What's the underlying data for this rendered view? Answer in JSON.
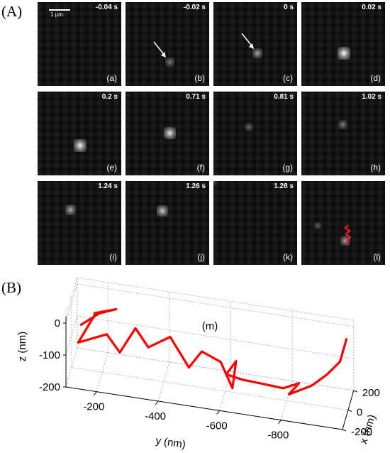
{
  "figure": {
    "panel_a_label": "(A)",
    "panel_b_label": "(B)",
    "scale_bar_label": "1 µm",
    "frames": [
      {
        "time": "-0.04 s",
        "label": "(a)",
        "spot_intensity": 0.0
      },
      {
        "time": "-0.02 s",
        "label": "(b)",
        "spot_intensity": 0.35,
        "arrow": true
      },
      {
        "time": "0 s",
        "label": "(c)",
        "spot_intensity": 0.55,
        "arrow": true
      },
      {
        "time": "0.02 s",
        "label": "(d)",
        "spot_intensity": 1.0
      },
      {
        "time": "0.2 s",
        "label": "(e)",
        "spot_intensity": 0.95
      },
      {
        "time": "0.71 s",
        "label": "(f)",
        "spot_intensity": 0.9
      },
      {
        "time": "0.81 s",
        "label": "(g)",
        "spot_intensity": 0.25
      },
      {
        "time": "1.02 s",
        "label": "(h)",
        "spot_intensity": 0.35
      },
      {
        "time": "1.24 s",
        "label": "(i)",
        "spot_intensity": 0.6
      },
      {
        "time": "1.26 s",
        "label": "(j)",
        "spot_intensity": 0.75
      },
      {
        "time": "1.28 s",
        "label": "(k)",
        "spot_intensity": 0.1
      },
      {
        "time": "",
        "label": "(l)",
        "spot_intensity": 0.55,
        "trajectory_overlay": true
      }
    ]
  },
  "chart_data": {
    "type": "line3d",
    "annotation": "(m)",
    "xlabel": "x (nm)",
    "ylabel": "y (nm)",
    "zlabel": "z (nm)",
    "x_ticks": [
      -200,
      0,
      200
    ],
    "y_ticks": [
      -200,
      -400,
      -600,
      -800
    ],
    "z_ticks": [
      0,
      -100,
      -200
    ],
    "xlim": [
      -200,
      200
    ],
    "ylim": [
      -100,
      -1000
    ],
    "zlim": [
      -200,
      20
    ],
    "grid": true,
    "series": [
      {
        "color": "#ff0000",
        "points": [
          {
            "x": -100,
            "y": -140,
            "z": -30
          },
          {
            "x": -80,
            "y": -200,
            "z": 10
          },
          {
            "x": -60,
            "y": -180,
            "z": 0
          },
          {
            "x": -50,
            "y": -250,
            "z": 20
          },
          {
            "x": -40,
            "y": -180,
            "z": -10
          },
          {
            "x": -90,
            "y": -130,
            "z": -90
          },
          {
            "x": -60,
            "y": -220,
            "z": -60
          },
          {
            "x": -30,
            "y": -260,
            "z": -120
          },
          {
            "x": -20,
            "y": -310,
            "z": -40
          },
          {
            "x": 0,
            "y": -350,
            "z": -100
          },
          {
            "x": 10,
            "y": -420,
            "z": -60
          },
          {
            "x": 20,
            "y": -480,
            "z": -150
          },
          {
            "x": 40,
            "y": -520,
            "z": -100
          },
          {
            "x": 60,
            "y": -580,
            "z": -130
          },
          {
            "x": 60,
            "y": -600,
            "z": -170
          },
          {
            "x": 40,
            "y": -620,
            "z": -200
          },
          {
            "x": 60,
            "y": -630,
            "z": -120
          },
          {
            "x": 40,
            "y": -600,
            "z": -160
          },
          {
            "x": 60,
            "y": -650,
            "z": -175
          },
          {
            "x": 80,
            "y": -720,
            "z": -185
          },
          {
            "x": 100,
            "y": -780,
            "z": -195
          },
          {
            "x": 110,
            "y": -830,
            "z": -175
          },
          {
            "x": 80,
            "y": -800,
            "z": -205
          },
          {
            "x": 120,
            "y": -870,
            "z": -180
          },
          {
            "x": 130,
            "y": -920,
            "z": -140
          },
          {
            "x": 150,
            "y": -960,
            "z": -100
          },
          {
            "x": 160,
            "y": -980,
            "z": -30
          }
        ]
      }
    ]
  }
}
